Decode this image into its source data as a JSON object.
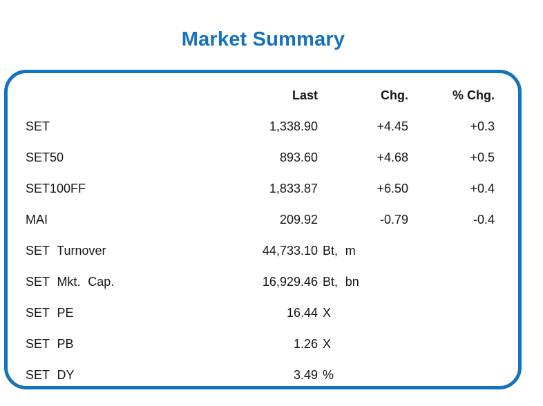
{
  "title": "Market Summary",
  "colors": {
    "accent_blue": "#1471ba",
    "border_blue": "#1473bd",
    "text": "#161616",
    "background": "#ffffff"
  },
  "table": {
    "headers": {
      "last": "Last",
      "chg": "Chg.",
      "pct_chg": "% Chg."
    },
    "rows": [
      {
        "label": "SET",
        "last": "1,338.90",
        "unit": "",
        "chg": "+4.45",
        "pct_chg": "+0.3"
      },
      {
        "label": "SET50",
        "last": "893.60",
        "unit": "",
        "chg": "+4.68",
        "pct_chg": "+0.5"
      },
      {
        "label": "SET100FF",
        "last": "1,833.87",
        "unit": "",
        "chg": "+6.50",
        "pct_chg": "+0.4"
      },
      {
        "label": "MAI",
        "last": "209.92",
        "unit": "",
        "chg": "-0.79",
        "pct_chg": "-0.4"
      },
      {
        "label": "SET Turnover",
        "last": "44,733.10",
        "unit": "Bt, m",
        "chg": "",
        "pct_chg": ""
      },
      {
        "label": "SET Mkt. Cap.",
        "last": "16,929.46",
        "unit": "Bt, bn",
        "chg": "",
        "pct_chg": ""
      },
      {
        "label": "SET PE",
        "last": "16.44",
        "unit": "X",
        "chg": "",
        "pct_chg": ""
      },
      {
        "label": "SET PB",
        "last": "1.26",
        "unit": "X",
        "chg": "",
        "pct_chg": ""
      },
      {
        "label": "SET DY",
        "last": "3.49",
        "unit": "%",
        "chg": "",
        "pct_chg": ""
      }
    ]
  },
  "chart_data": {
    "type": "table",
    "title": "Market Summary",
    "columns": [
      "",
      "Last",
      "Chg.",
      "% Chg."
    ],
    "rows": [
      [
        "SET",
        "1,338.90",
        "+4.45",
        "+0.3"
      ],
      [
        "SET50",
        "893.60",
        "+4.68",
        "+0.5"
      ],
      [
        "SET100FF",
        "1,833.87",
        "+6.50",
        "+0.4"
      ],
      [
        "MAI",
        "209.92",
        "-0.79",
        "-0.4"
      ],
      [
        "SET Turnover",
        "44,733.10 Bt, m",
        "",
        ""
      ],
      [
        "SET Mkt. Cap.",
        "16,929.46 Bt, bn",
        "",
        ""
      ],
      [
        "SET PE",
        "16.44 X",
        "",
        ""
      ],
      [
        "SET PB",
        "1.26 X",
        "",
        ""
      ],
      [
        "SET DY",
        "3.49 %",
        "",
        ""
      ]
    ]
  }
}
